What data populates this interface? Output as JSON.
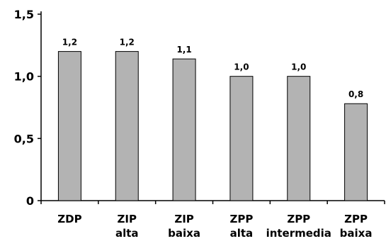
{
  "chart_data": {
    "type": "bar",
    "categories": [
      [
        "ZDP"
      ],
      [
        "ZIP",
        "alta"
      ],
      [
        "ZIP",
        "baixa"
      ],
      [
        "ZPP",
        "alta"
      ],
      [
        "ZPP",
        "intermedia"
      ],
      [
        "ZPP",
        "baixa"
      ]
    ],
    "values": [
      1.2,
      1.2,
      1.14,
      1.0,
      1.0,
      0.78
    ],
    "data_labels": [
      "1,2",
      "1,2",
      "1,1",
      "1,0",
      "1,0",
      "0,8"
    ],
    "yticks": [
      0,
      0.5,
      1.0,
      1.5
    ],
    "ytick_labels": [
      "0",
      "0,5",
      "1,0",
      "1,5"
    ],
    "ylim": [
      0,
      1.5
    ],
    "title": "",
    "xlabel": "",
    "ylabel": "",
    "grid": false,
    "bar_color": "#b3b3b3",
    "bar_edge_color": "#000000",
    "axis_color": "#000000"
  }
}
